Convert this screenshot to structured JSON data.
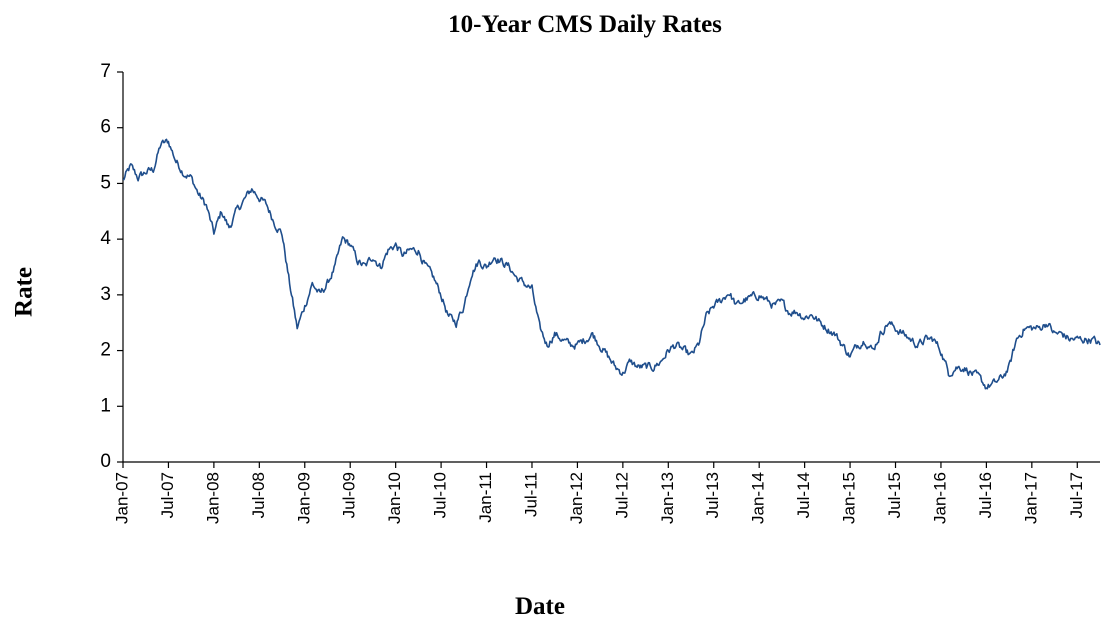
{
  "chart_data": {
    "type": "line",
    "title": "10-Year CMS Daily Rates",
    "xlabel": "Date",
    "ylabel": "Rate",
    "ylim": [
      0,
      7
    ],
    "yticks": [
      "0",
      "1",
      "2",
      "3",
      "4",
      "5",
      "6",
      "7"
    ],
    "xlim": [
      "2007-01",
      "2017-10"
    ],
    "grid": false,
    "legend": "none",
    "colors": {
      "series": "#1f4e8c",
      "axis": "#000000"
    },
    "xticks": [
      {
        "date": "2007-01",
        "label": "Jan-07"
      },
      {
        "date": "2007-07",
        "label": "Jul-07"
      },
      {
        "date": "2008-01",
        "label": "Jan-08"
      },
      {
        "date": "2008-07",
        "label": "Jul-08"
      },
      {
        "date": "2009-01",
        "label": "Jan-09"
      },
      {
        "date": "2009-07",
        "label": "Jul-09"
      },
      {
        "date": "2010-01",
        "label": "Jan-10"
      },
      {
        "date": "2010-07",
        "label": "Jul-10"
      },
      {
        "date": "2011-01",
        "label": "Jan-11"
      },
      {
        "date": "2011-07",
        "label": "Jul-11"
      },
      {
        "date": "2012-01",
        "label": "Jan-12"
      },
      {
        "date": "2012-07",
        "label": "Jul-12"
      },
      {
        "date": "2013-01",
        "label": "Jan-13"
      },
      {
        "date": "2013-07",
        "label": "Jul-13"
      },
      {
        "date": "2014-01",
        "label": "Jan-14"
      },
      {
        "date": "2014-07",
        "label": "Jul-14"
      },
      {
        "date": "2015-01",
        "label": "Jan-15"
      },
      {
        "date": "2015-07",
        "label": "Jul-15"
      },
      {
        "date": "2016-01",
        "label": "Jan-16"
      },
      {
        "date": "2016-07",
        "label": "Jul-16"
      },
      {
        "date": "2017-01",
        "label": "Jan-17"
      },
      {
        "date": "2017-07",
        "label": "Jul-17"
      }
    ],
    "series": [
      {
        "x": [
          "2007-01",
          "2007-02",
          "2007-03",
          "2007-04",
          "2007-05",
          "2007-06",
          "2007-07",
          "2007-08",
          "2007-09",
          "2007-10",
          "2007-11",
          "2007-12",
          "2008-01",
          "2008-02",
          "2008-03",
          "2008-04",
          "2008-05",
          "2008-06",
          "2008-07",
          "2008-08",
          "2008-09",
          "2008-10",
          "2008-11",
          "2008-12",
          "2009-01",
          "2009-02",
          "2009-03",
          "2009-04",
          "2009-05",
          "2009-06",
          "2009-07",
          "2009-08",
          "2009-09",
          "2009-10",
          "2009-11",
          "2009-12",
          "2010-01",
          "2010-02",
          "2010-03",
          "2010-04",
          "2010-05",
          "2010-06",
          "2010-07",
          "2010-08",
          "2010-09",
          "2010-10",
          "2010-11",
          "2010-12",
          "2011-01",
          "2011-02",
          "2011-03",
          "2011-04",
          "2011-05",
          "2011-06",
          "2011-07",
          "2011-08",
          "2011-09",
          "2011-10",
          "2011-11",
          "2011-12",
          "2012-01",
          "2012-02",
          "2012-03",
          "2012-04",
          "2012-05",
          "2012-06",
          "2012-07",
          "2012-08",
          "2012-09",
          "2012-10",
          "2012-11",
          "2012-12",
          "2013-01",
          "2013-02",
          "2013-03",
          "2013-04",
          "2013-05",
          "2013-06",
          "2013-07",
          "2013-08",
          "2013-09",
          "2013-10",
          "2013-11",
          "2013-12",
          "2014-01",
          "2014-02",
          "2014-03",
          "2014-04",
          "2014-05",
          "2014-06",
          "2014-07",
          "2014-08",
          "2014-09",
          "2014-10",
          "2014-11",
          "2014-12",
          "2015-01",
          "2015-02",
          "2015-03",
          "2015-04",
          "2015-05",
          "2015-06",
          "2015-07",
          "2015-08",
          "2015-09",
          "2015-10",
          "2015-11",
          "2015-12",
          "2016-01",
          "2016-02",
          "2016-03",
          "2016-04",
          "2016-05",
          "2016-06",
          "2016-07",
          "2016-08",
          "2016-09",
          "2016-10",
          "2016-11",
          "2016-12",
          "2017-01",
          "2017-02",
          "2017-03",
          "2017-04",
          "2017-05",
          "2017-06",
          "2017-07",
          "2017-08",
          "2017-09",
          "2017-10"
        ],
        "values": [
          5.05,
          5.3,
          5.1,
          5.2,
          5.25,
          5.7,
          5.75,
          5.4,
          5.2,
          5.1,
          4.8,
          4.6,
          4.1,
          4.5,
          4.2,
          4.5,
          4.7,
          4.9,
          4.75,
          4.6,
          4.3,
          4.1,
          3.2,
          2.4,
          2.8,
          3.2,
          3.0,
          3.2,
          3.5,
          4.0,
          3.9,
          3.6,
          3.5,
          3.7,
          3.5,
          3.8,
          3.9,
          3.7,
          3.8,
          3.8,
          3.5,
          3.3,
          3.0,
          2.6,
          2.5,
          2.8,
          3.4,
          3.6,
          3.5,
          3.7,
          3.6,
          3.5,
          3.3,
          3.2,
          3.1,
          2.4,
          2.1,
          2.3,
          2.2,
          2.1,
          2.1,
          2.2,
          2.3,
          2.1,
          1.9,
          1.7,
          1.6,
          1.8,
          1.7,
          1.7,
          1.7,
          1.8,
          2.0,
          2.1,
          2.0,
          1.9,
          2.1,
          2.6,
          2.8,
          2.9,
          3.05,
          2.8,
          2.9,
          2.95,
          3.0,
          2.9,
          2.8,
          2.85,
          2.7,
          2.7,
          2.6,
          2.65,
          2.5,
          2.4,
          2.3,
          2.1,
          1.9,
          2.1,
          2.2,
          2.0,
          2.3,
          2.5,
          2.4,
          2.3,
          2.2,
          2.1,
          2.2,
          2.2,
          2.0,
          1.6,
          1.7,
          1.7,
          1.6,
          1.5,
          1.35,
          1.4,
          1.5,
          1.7,
          2.2,
          2.4,
          2.4,
          2.4,
          2.5,
          2.3,
          2.3,
          2.2,
          2.2,
          2.2,
          2.2,
          2.1
        ]
      }
    ]
  }
}
